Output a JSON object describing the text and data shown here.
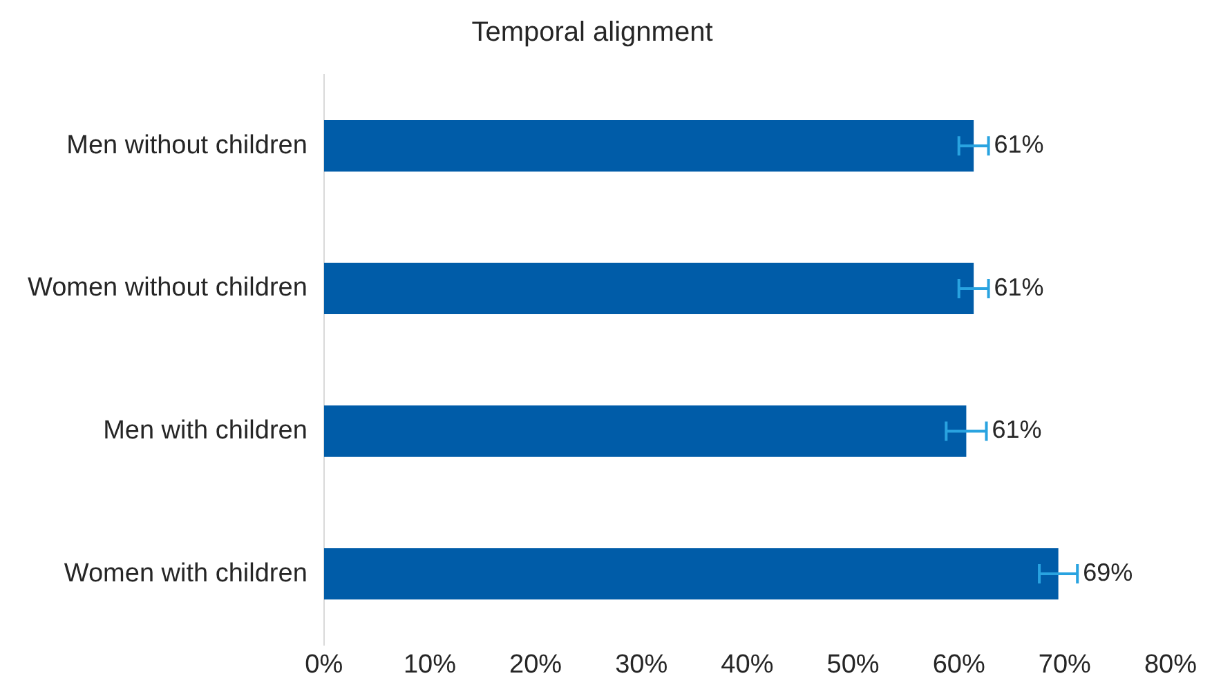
{
  "chart_data": {
    "type": "bar",
    "orientation": "horizontal",
    "title": "Temporal alignment",
    "categories": [
      "Men without children",
      "Women without children",
      "Men with children",
      "Women with children"
    ],
    "values": [
      61.4,
      61.4,
      60.7,
      69.4
    ],
    "value_labels": [
      "61%",
      "61%",
      "61%",
      "69%"
    ],
    "errors": [
      1.4,
      1.4,
      1.9,
      1.8
    ],
    "color": "#005ca8",
    "xlim": [
      0,
      80
    ],
    "xticks": [
      {
        "value": 0,
        "label": "0%"
      },
      {
        "value": 10,
        "label": "10%"
      },
      {
        "value": 20,
        "label": "20%"
      },
      {
        "value": 30,
        "label": "30%"
      },
      {
        "value": 40,
        "label": "40%"
      },
      {
        "value": 50,
        "label": "50%"
      },
      {
        "value": 60,
        "label": "60%"
      },
      {
        "value": 70,
        "label": "70%"
      },
      {
        "value": 80,
        "label": "80%"
      }
    ],
    "grid": false,
    "legend": false
  }
}
